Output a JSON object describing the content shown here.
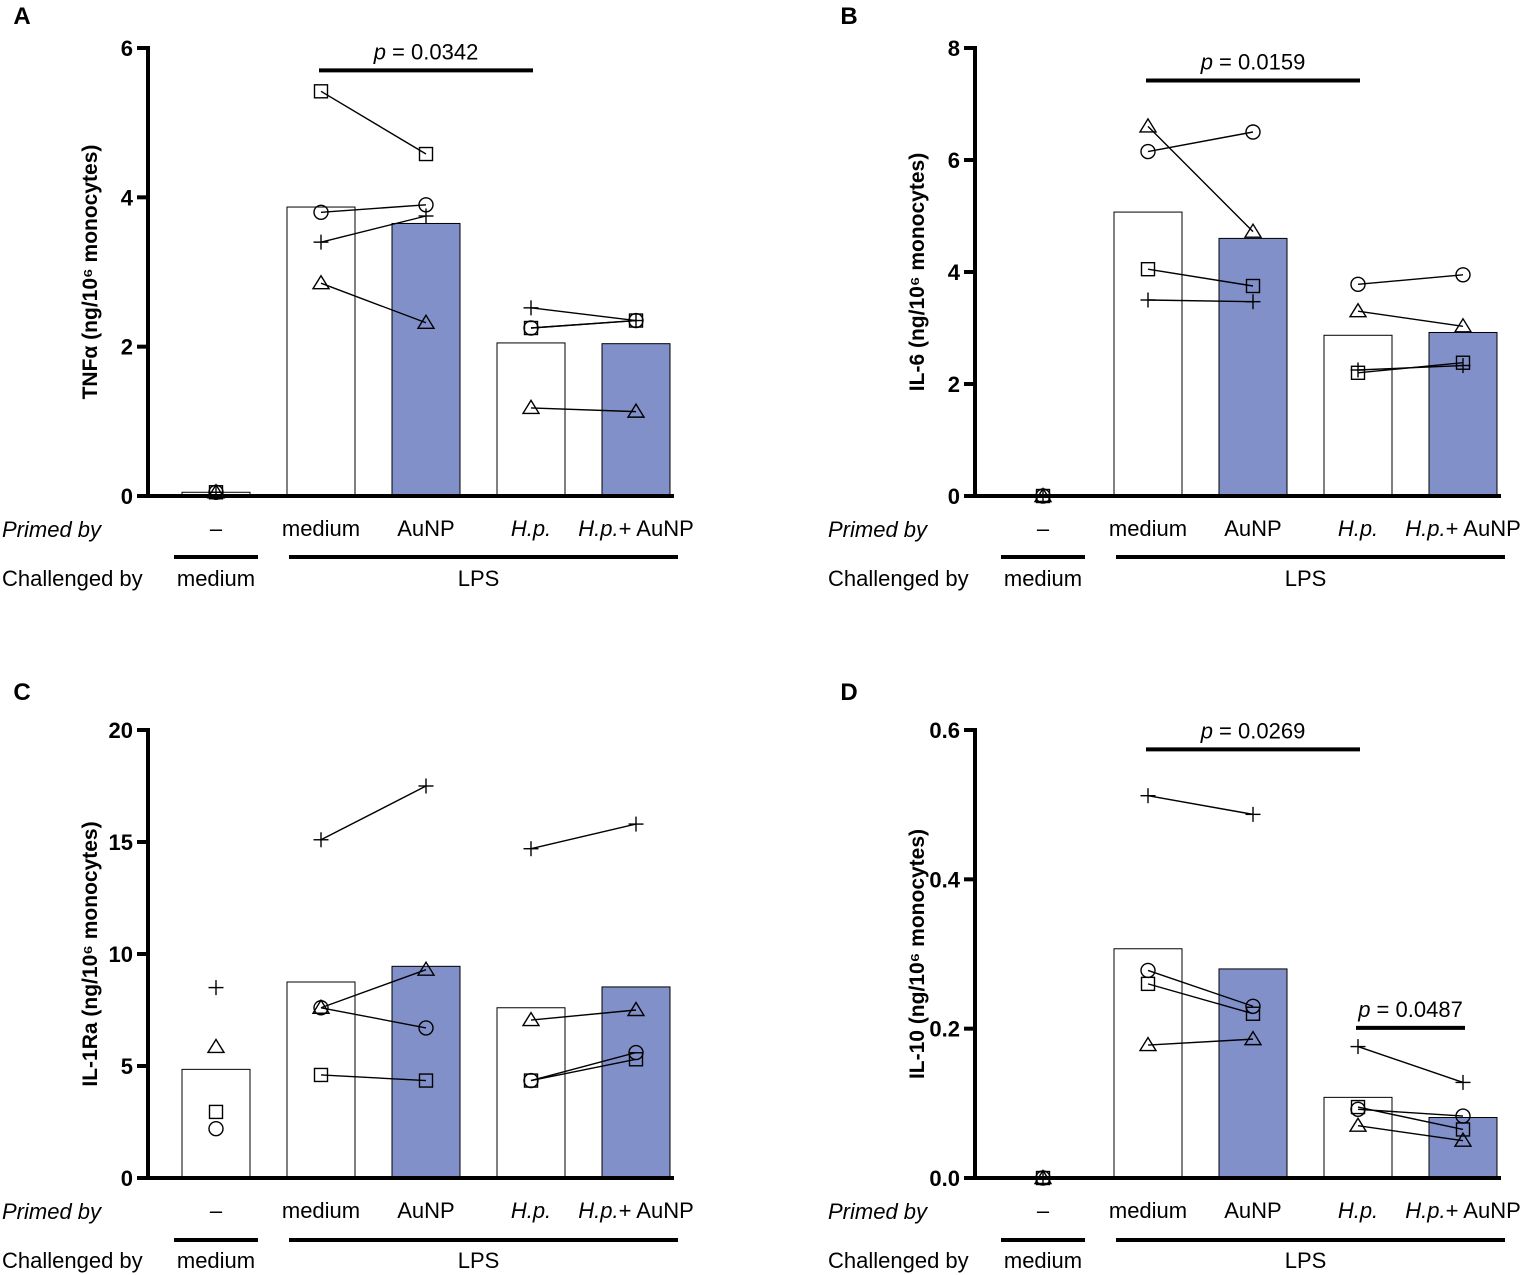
{
  "figure": {
    "row_primed": "Primed by",
    "row_challenged": "Challenged by",
    "categories": [
      "–",
      "medium",
      "AuNP",
      "H.p.",
      "H.p.+ AuNP"
    ],
    "italic_categories": [
      "H.p.",
      "H.p.+ AuNP"
    ],
    "challenge_groups": [
      "medium",
      "LPS"
    ],
    "colors": {
      "filled_bar": "#8290ca",
      "empty_bar": "#ffffff",
      "ink": "#000000"
    },
    "donor_markers": [
      "square",
      "circle",
      "triangle",
      "plus"
    ]
  },
  "chart_data": [
    {
      "panel": "A",
      "type": "bar",
      "ylabel": "TNFα (ng/10⁶ monocytes)",
      "ylim": [
        0,
        6
      ],
      "yticks": [
        0,
        2,
        4,
        6
      ],
      "ytick_labels": [
        "0",
        "2",
        "4",
        "6"
      ],
      "bar_means": [
        0.05,
        3.87,
        3.65,
        2.05,
        2.04
      ],
      "filled": [
        false,
        false,
        true,
        false,
        true
      ],
      "donors": [
        {
          "marker": "square",
          "values": [
            0.05,
            5.42,
            4.58,
            2.25,
            2.35
          ]
        },
        {
          "marker": "circle",
          "values": [
            0.05,
            3.8,
            3.9,
            2.25,
            2.35
          ]
        },
        {
          "marker": "plus",
          "values": [
            0.05,
            3.4,
            3.75,
            2.52,
            2.35
          ]
        },
        {
          "marker": "triangle",
          "values": [
            0.05,
            2.85,
            2.32,
            1.18,
            1.13
          ]
        }
      ],
      "significance": [
        {
          "from": 1,
          "to": 3,
          "y": 5.7,
          "p_prefix": "p",
          "p_text": " = 0.0342"
        }
      ]
    },
    {
      "panel": "B",
      "type": "bar",
      "ylabel": "IL-6 (ng/10⁶ monocytes)",
      "ylim": [
        0,
        8
      ],
      "yticks": [
        0,
        2,
        4,
        6,
        8
      ],
      "ytick_labels": [
        "0",
        "2",
        "4",
        "6",
        "8"
      ],
      "bar_means": [
        0.0,
        5.07,
        4.6,
        2.87,
        2.92
      ],
      "filled": [
        false,
        false,
        true,
        false,
        true
      ],
      "donors": [
        {
          "marker": "triangle",
          "values": [
            0.0,
            6.6,
            4.72,
            3.3,
            3.03
          ]
        },
        {
          "marker": "circle",
          "values": [
            0.0,
            6.15,
            6.5,
            3.78,
            3.95
          ]
        },
        {
          "marker": "square",
          "values": [
            0.0,
            4.05,
            3.75,
            2.2,
            2.38
          ]
        },
        {
          "marker": "plus",
          "values": [
            0.0,
            3.5,
            3.47,
            2.25,
            2.33
          ]
        }
      ],
      "significance": [
        {
          "from": 1,
          "to": 3,
          "y": 7.42,
          "p_prefix": "p",
          "p_text": " = 0.0159"
        }
      ]
    },
    {
      "panel": "C",
      "type": "bar",
      "ylabel": "IL-1Ra (ng/10⁶ monocytes)",
      "ylim": [
        0,
        20
      ],
      "yticks": [
        0,
        5,
        10,
        15,
        20
      ],
      "ytick_labels": [
        "0",
        "5",
        "10",
        "15",
        "20"
      ],
      "bar_means": [
        4.85,
        8.75,
        9.45,
        7.6,
        8.53
      ],
      "filled": [
        false,
        false,
        true,
        false,
        true
      ],
      "donors": [
        {
          "marker": "plus",
          "values": [
            8.5,
            15.1,
            17.5,
            14.7,
            15.8
          ]
        },
        {
          "marker": "triangle",
          "values": [
            5.85,
            7.6,
            9.3,
            7.05,
            7.5
          ]
        },
        {
          "marker": "circle",
          "values": [
            2.2,
            7.6,
            6.7,
            4.35,
            5.6
          ]
        },
        {
          "marker": "square",
          "values": [
            2.95,
            4.6,
            4.35,
            4.35,
            5.3
          ]
        }
      ],
      "significance": []
    },
    {
      "panel": "D",
      "type": "bar",
      "ylabel": "IL-10 (ng/10⁶ monocytes)",
      "ylim": [
        0,
        0.6
      ],
      "yticks": [
        0,
        0.2,
        0.4,
        0.6
      ],
      "ytick_labels": [
        "0.0",
        "0.2",
        "0.4",
        "0.6"
      ],
      "bar_means": [
        0.0,
        0.307,
        0.28,
        0.108,
        0.081
      ],
      "filled": [
        false,
        false,
        true,
        false,
        true
      ],
      "donors": [
        {
          "marker": "plus",
          "values": [
            0.0,
            0.512,
            0.487,
            0.176,
            0.128
          ]
        },
        {
          "marker": "circle",
          "values": [
            0.0,
            0.278,
            0.23,
            0.092,
            0.083
          ]
        },
        {
          "marker": "square",
          "values": [
            0.0,
            0.26,
            0.22,
            0.095,
            0.065
          ]
        },
        {
          "marker": "triangle",
          "values": [
            0.0,
            0.178,
            0.186,
            0.07,
            0.05
          ]
        }
      ],
      "significance": [
        {
          "from": 1,
          "to": 3,
          "y": 0.574,
          "p_prefix": "p",
          "p_text": " = 0.0269"
        },
        {
          "from": 3,
          "to": 4,
          "y": 0.201,
          "p_prefix": "p",
          "p_text": " =  0.0487"
        }
      ]
    }
  ]
}
